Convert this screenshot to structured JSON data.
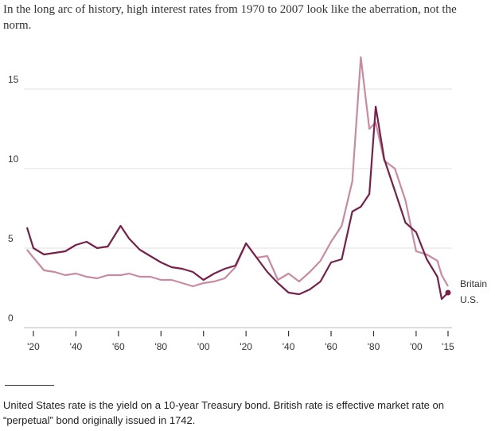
{
  "chart_data": {
    "type": "line",
    "title": "In the long arc of history, high interest rates from 1970 to 2007 look like the aberration, not the norm.",
    "note": "United States rate is the yield on a 10-year Treasury bond. British rate is effective market rate on “perpetual” bond originally issued in 1742.",
    "x": [
      1817,
      1820,
      1825,
      1830,
      1835,
      1840,
      1845,
      1850,
      1855,
      1861,
      1865,
      1870,
      1875,
      1880,
      1885,
      1890,
      1895,
      1900,
      1905,
      1910,
      1915,
      1920,
      1925,
      1930,
      1935,
      1940,
      1945,
      1950,
      1955,
      1960,
      1965,
      1970,
      1974,
      1978,
      1981,
      1985,
      1990,
      1995,
      2000,
      2005,
      2010,
      2012,
      2015
    ],
    "series": [
      {
        "name": "Britain",
        "color": "#c98aa2",
        "values": [
          4.9,
          4.4,
          3.6,
          3.5,
          3.3,
          3.4,
          3.2,
          3.1,
          3.3,
          3.3,
          3.4,
          3.2,
          3.2,
          3.0,
          3.0,
          2.8,
          2.6,
          2.8,
          2.9,
          3.1,
          3.8,
          5.3,
          4.4,
          4.5,
          3.0,
          3.4,
          2.9,
          3.5,
          4.2,
          5.4,
          6.4,
          9.2,
          17.0,
          12.5,
          12.9,
          10.5,
          10.0,
          8.0,
          4.8,
          4.6,
          4.2,
          3.3,
          2.6
        ]
      },
      {
        "name": "U.S.",
        "color": "#7a2048",
        "values": [
          6.3,
          5.0,
          4.6,
          4.7,
          4.8,
          5.2,
          5.4,
          5.0,
          5.1,
          6.4,
          5.6,
          4.9,
          4.5,
          4.1,
          3.8,
          3.7,
          3.5,
          3.0,
          3.4,
          3.7,
          3.9,
          5.3,
          4.4,
          3.5,
          2.8,
          2.2,
          2.1,
          2.4,
          2.9,
          4.1,
          4.3,
          7.3,
          7.6,
          8.4,
          13.9,
          10.6,
          8.6,
          6.6,
          6.0,
          4.3,
          3.2,
          1.8,
          2.2
        ]
      }
    ],
    "xlim": [
      1815,
      2018
    ],
    "xticks": [
      {
        "value": 1820,
        "label": "'20"
      },
      {
        "value": 1840,
        "label": "'40"
      },
      {
        "value": 1860,
        "label": "'60"
      },
      {
        "value": 1880,
        "label": "'80"
      },
      {
        "value": 1900,
        "label": "'00"
      },
      {
        "value": 1920,
        "label": "'20"
      },
      {
        "value": 1940,
        "label": "'40"
      },
      {
        "value": 1960,
        "label": "'60"
      },
      {
        "value": 1980,
        "label": "'80"
      },
      {
        "value": 2000,
        "label": "'00"
      },
      {
        "value": 2015,
        "label": "'15"
      }
    ],
    "ylim": [
      0,
      17
    ],
    "yticks": [
      0,
      5,
      10,
      15
    ],
    "grid": true
  }
}
